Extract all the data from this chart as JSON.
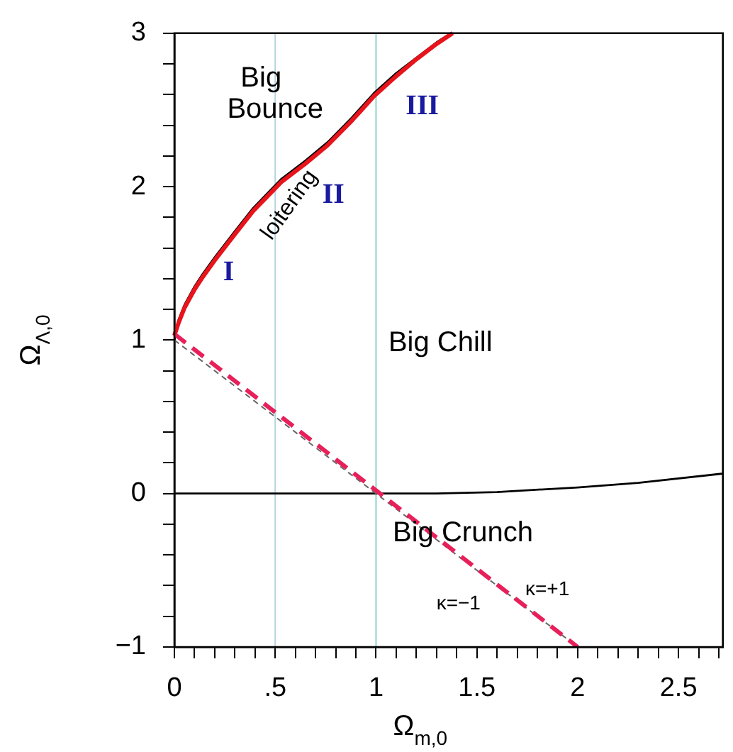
{
  "chart_data": {
    "type": "line",
    "xlabel": "Ω$_{m,0}$",
    "ylabel": "Ω$_{Λ,0}$",
    "xlim": [
      0,
      2.72
    ],
    "ylim": [
      -1,
      3
    ],
    "xticks": [
      0,
      {
        "value": 0.1,
        "label": null
      },
      {
        "value": 0.2,
        "label": null
      },
      {
        "value": 0.3,
        "label": null
      },
      {
        "value": 0.4,
        "label": null
      },
      {
        "value": 0.5,
        "label": ".5"
      },
      {
        "value": 0.6,
        "label": null
      },
      {
        "value": 0.7,
        "label": null
      },
      {
        "value": 0.8,
        "label": null
      },
      {
        "value": 0.9,
        "label": null
      },
      1,
      {
        "value": 1.1,
        "label": null
      },
      {
        "value": 1.2,
        "label": null
      },
      {
        "value": 1.3,
        "label": null
      },
      {
        "value": 1.4,
        "label": null
      },
      1.5,
      {
        "value": 1.6,
        "label": null
      },
      {
        "value": 1.7,
        "label": null
      },
      {
        "value": 1.8,
        "label": null
      },
      {
        "value": 1.9,
        "label": null
      },
      2,
      {
        "value": 2.1,
        "label": null
      },
      {
        "value": 2.2,
        "label": null
      },
      {
        "value": 2.3,
        "label": null
      },
      {
        "value": 2.4,
        "label": null
      },
      2.5,
      {
        "value": 2.6,
        "label": null
      },
      {
        "value": 2.7,
        "label": null
      }
    ],
    "yticks": [
      {
        "value": -1,
        "label": "−1"
      },
      {
        "value": -0.8,
        "label": null
      },
      {
        "value": -0.6,
        "label": null
      },
      {
        "value": -0.4,
        "label": null
      },
      {
        "value": -0.2,
        "label": null
      },
      0,
      {
        "value": 0.2,
        "label": null
      },
      {
        "value": 0.4,
        "label": null
      },
      {
        "value": 0.6,
        "label": null
      },
      {
        "value": 0.8,
        "label": null
      },
      1,
      {
        "value": 1.2,
        "label": null
      },
      {
        "value": 1.4,
        "label": null
      },
      {
        "value": 1.6,
        "label": null
      },
      {
        "value": 1.8,
        "label": null
      },
      2,
      {
        "value": 2.2,
        "label": null
      },
      {
        "value": 2.4,
        "label": null
      },
      {
        "value": 2.6,
        "label": null
      },
      {
        "value": 2.8,
        "label": null
      },
      3
    ],
    "marker": "none",
    "series": [
      {
        "color": "#000000",
        "x": [
          0,
          0.02,
          0.05,
          0.1,
          0.14,
          0.2,
          0.3,
          0.39,
          0.53,
          0.65,
          0.76,
          0.88,
          0.99,
          1.1,
          1.2,
          1.3,
          1.37
        ],
        "values": [
          1.0,
          1.13,
          1.23,
          1.35,
          1.43,
          1.54,
          1.71,
          1.86,
          2.05,
          2.17,
          2.29,
          2.45,
          2.61,
          2.74,
          2.84,
          2.94,
          3.0
        ]
      },
      {
        "color": "#e8141c",
        "x": [
          0,
          0.02,
          0.05,
          0.1,
          0.14,
          0.2,
          0.3,
          0.39,
          0.53,
          0.65,
          0.76,
          0.88,
          0.99,
          1.1,
          1.2,
          1.3,
          1.38
        ],
        "values": [
          1.03,
          1.11,
          1.21,
          1.33,
          1.41,
          1.52,
          1.69,
          1.84,
          2.03,
          2.15,
          2.27,
          2.43,
          2.59,
          2.72,
          2.83,
          2.93,
          3.0
        ]
      },
      {
        "color": "#000000",
        "x": [
          0,
          0.5,
          1,
          1.3,
          1.6,
          2,
          2.3,
          2.72
        ],
        "values": [
          0,
          0,
          0,
          0,
          0.01,
          0.04,
          0.07,
          0.13
        ]
      },
      {
        "color": "#666666",
        "line_style": "dashed",
        "x": [
          0,
          2
        ],
        "values": [
          1,
          -1
        ]
      },
      {
        "color": "#e8205a",
        "line_style": "dashed",
        "x": [
          0,
          2
        ],
        "values": [
          1.04,
          -1
        ]
      }
    ],
    "ref_lines": [
      {
        "axis": "x",
        "value": 0.5,
        "color": "#b4d4e0"
      },
      {
        "axis": "x",
        "value": 1,
        "color": "#90d4c8"
      }
    ],
    "annotations": [
      {
        "text": "Big Bounce",
        "x": 0.5,
        "y": 2.6
      },
      "loitering",
      "I",
      "II",
      "III",
      "Big Chill",
      "Big Crunch",
      "κ=−1",
      "κ=+1"
    ]
  }
}
